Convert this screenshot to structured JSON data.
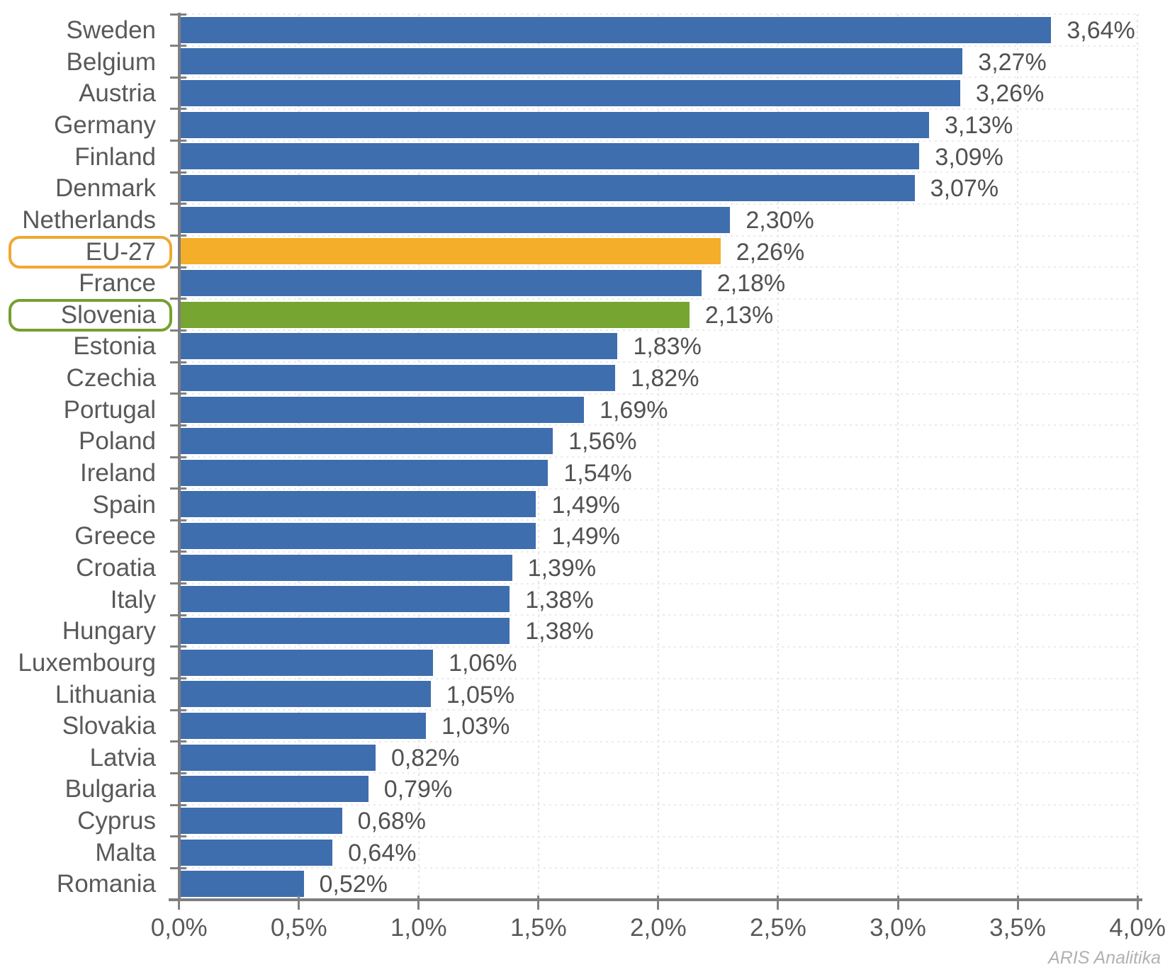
{
  "watermark": "ARIS Analitika",
  "chart_data": {
    "type": "bar",
    "orientation": "horizontal",
    "title": "",
    "xlabel": "",
    "ylabel": "",
    "xlim": [
      0,
      4
    ],
    "x_tick_step": 0.5,
    "x_tick_labels": [
      "0,0%",
      "0,5%",
      "1,0%",
      "1,5%",
      "2,0%",
      "2,5%",
      "3,0%",
      "3,5%",
      "4,0%"
    ],
    "grid": "dotted",
    "legend": "none",
    "decimal_separator": ",",
    "colors": {
      "default_bar": "#3E6EAD",
      "eu_bar": "#F4AE29",
      "slovenia_bar": "#76A532",
      "eu_outline": "#F0A832",
      "slovenia_outline": "#76A02F",
      "axis": "#7F7F7F",
      "category_labels": "#595959",
      "value_labels": "#515151",
      "gridline": "#E3E3E3",
      "watermark": "#B1B1B1"
    },
    "rows": [
      {
        "category": "Sweden",
        "value": 3.64,
        "label": "3,64%"
      },
      {
        "category": "Belgium",
        "value": 3.27,
        "label": "3,27%"
      },
      {
        "category": "Austria",
        "value": 3.26,
        "label": "3,26%"
      },
      {
        "category": "Germany",
        "value": 3.13,
        "label": "3,13%"
      },
      {
        "category": "Finland",
        "value": 3.09,
        "label": "3,09%"
      },
      {
        "category": "Denmark",
        "value": 3.07,
        "label": "3,07%"
      },
      {
        "category": "Netherlands",
        "value": 2.3,
        "label": "2,30%"
      },
      {
        "category": "EU-27",
        "value": 2.26,
        "label": "2,26%",
        "highlight": "eu"
      },
      {
        "category": "France",
        "value": 2.18,
        "label": "2,18%"
      },
      {
        "category": "Slovenia",
        "value": 2.13,
        "label": "2,13%",
        "highlight": "slovenia"
      },
      {
        "category": "Estonia",
        "value": 1.83,
        "label": "1,83%"
      },
      {
        "category": "Czechia",
        "value": 1.82,
        "label": "1,82%"
      },
      {
        "category": "Portugal",
        "value": 1.69,
        "label": "1,69%"
      },
      {
        "category": "Poland",
        "value": 1.56,
        "label": "1,56%"
      },
      {
        "category": "Ireland",
        "value": 1.54,
        "label": "1,54%"
      },
      {
        "category": "Spain",
        "value": 1.49,
        "label": "1,49%"
      },
      {
        "category": "Greece",
        "value": 1.49,
        "label": "1,49%"
      },
      {
        "category": "Croatia",
        "value": 1.39,
        "label": "1,39%"
      },
      {
        "category": "Italy",
        "value": 1.38,
        "label": "1,38%"
      },
      {
        "category": "Hungary",
        "value": 1.38,
        "label": "1,38%"
      },
      {
        "category": "Luxembourg",
        "value": 1.06,
        "label": "1,06%"
      },
      {
        "category": "Lithuania",
        "value": 1.05,
        "label": "1,05%"
      },
      {
        "category": "Slovakia",
        "value": 1.03,
        "label": "1,03%"
      },
      {
        "category": "Latvia",
        "value": 0.82,
        "label": "0,82%"
      },
      {
        "category": "Bulgaria",
        "value": 0.79,
        "label": "0,79%"
      },
      {
        "category": "Cyprus",
        "value": 0.68,
        "label": "0,68%"
      },
      {
        "category": "Malta",
        "value": 0.64,
        "label": "0,64%"
      },
      {
        "category": "Romania",
        "value": 0.52,
        "label": "0,52%"
      }
    ]
  }
}
